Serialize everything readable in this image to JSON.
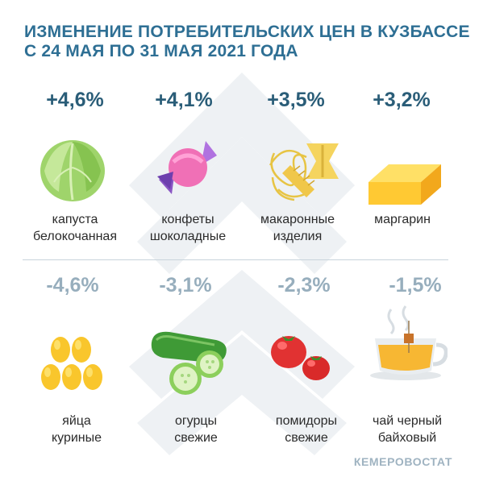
{
  "title_lines": [
    "ИЗМЕНЕНИЕ ПОТРЕБИТЕЛЬСКИХ ЦЕН В КУЗБАССЕ",
    "С 24 МАЯ ПО 31 МАЯ 2021 ГОДА"
  ],
  "source": "КЕМЕРОВОСТАТ",
  "colors": {
    "title": "#2e6f94",
    "increase": "#2a5d78",
    "decrease": "#97aebd",
    "background_mark": "#f0f2f4"
  },
  "chart_data": {
    "type": "table",
    "title": "ИЗМЕНЕНИЕ ПОТРЕБИТЕЛЬСКИХ ЦЕН В КУЗБАССЕ С 24 МАЯ ПО 31 МАЯ 2021 ГОДА",
    "increases": [
      {
        "value_label": "+4,6%",
        "value": 4.6,
        "label_lines": [
          "капуста",
          "белокочанная"
        ],
        "icon": "cabbage-icon"
      },
      {
        "value_label": "+4,1%",
        "value": 4.1,
        "label_lines": [
          "конфеты",
          "шоколадные"
        ],
        "icon": "candy-icon"
      },
      {
        "value_label": "+3,5%",
        "value": 3.5,
        "label_lines": [
          "макаронные",
          "изделия"
        ],
        "icon": "pasta-icon"
      },
      {
        "value_label": "+3,2%",
        "value": 3.2,
        "label_lines": [
          "маргарин"
        ],
        "icon": "margarine-icon"
      }
    ],
    "decreases": [
      {
        "value_label": "-4,6%",
        "value": -4.6,
        "label_lines": [
          "яйца",
          "куриные"
        ],
        "icon": "eggs-icon"
      },
      {
        "value_label": "-3,1%",
        "value": -3.1,
        "label_lines": [
          "огурцы",
          "свежие"
        ],
        "icon": "cucumber-icon"
      },
      {
        "value_label": "-2,3%",
        "value": -2.3,
        "label_lines": [
          "помидоры",
          "свежие"
        ],
        "icon": "tomato-icon"
      },
      {
        "value_label": "-1,5%",
        "value": -1.5,
        "label_lines": [
          "чай черный",
          "байховый"
        ],
        "icon": "tea-icon"
      }
    ]
  }
}
